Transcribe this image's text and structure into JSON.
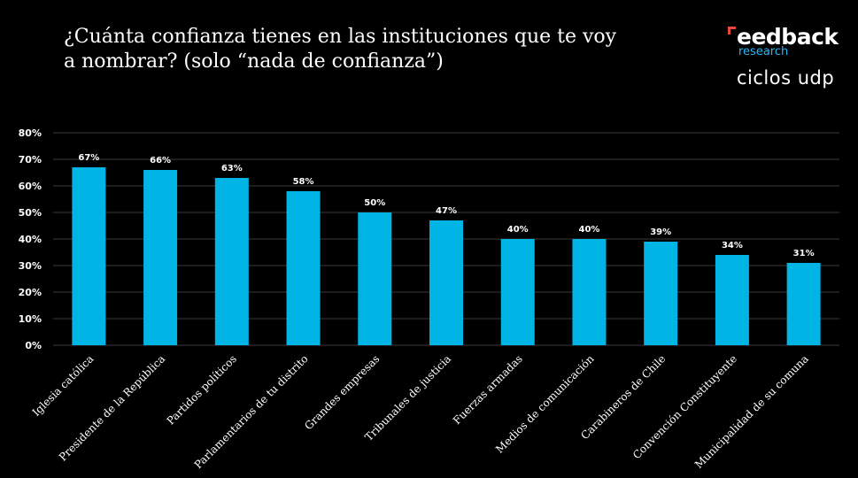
{
  "header": {
    "title_line1": "¿Cuánta confianza tienes en las instituciones que te voy",
    "title_line2": "a nombrar? (solo “nada de confianza”)"
  },
  "logos": {
    "feedback": "eedback",
    "research": "research",
    "ciclos_udp": "ciclos udp",
    "accent_color": "#e8473c",
    "research_color": "#29b6f6"
  },
  "chart_data": {
    "type": "bar",
    "title": "¿Cuánta confianza tienes en las instituciones que te voy a nombrar? (solo “nada de confianza”)",
    "categories": [
      "Iglesia católica",
      "Presidente de la República",
      "Partidos políticos",
      "Parlamentarios de tu distrito",
      "Grandes empresas",
      "Tribunales de justicia",
      "Fuerzas armadas",
      "Medios de comunicación",
      "Carabineros de Chile",
      "Convención Constituyente",
      "Municipalidad de su comuna"
    ],
    "values": [
      67,
      66,
      63,
      58,
      50,
      47,
      40,
      40,
      39,
      34,
      31
    ],
    "value_labels": [
      "67%",
      "66%",
      "63%",
      "58%",
      "50%",
      "47%",
      "40%",
      "40%",
      "39%",
      "34%",
      "31%"
    ],
    "yticks": [
      0,
      10,
      20,
      30,
      40,
      50,
      60,
      70,
      80
    ],
    "ytick_labels": [
      "0%",
      "10%",
      "20%",
      "30%",
      "40%",
      "50%",
      "60%",
      "70%",
      "80%"
    ],
    "ylim": [
      0,
      80
    ],
    "xlabel": "",
    "ylabel": "",
    "grid": true,
    "legend": "none",
    "bar_color": "#00b4e6",
    "grid_color": "#3a3a3a"
  }
}
